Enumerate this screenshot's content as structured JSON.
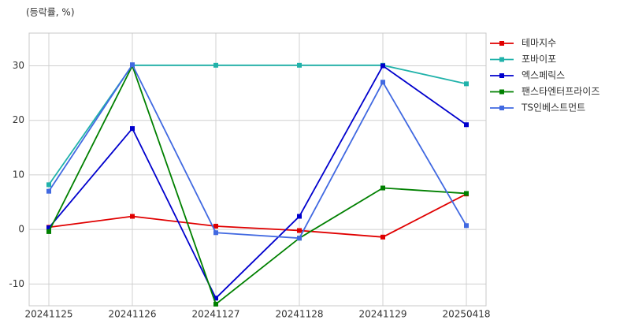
{
  "chart_data": {
    "type": "line",
    "y_label": "(등락률, %)",
    "categories": [
      "20241125",
      "20241126",
      "20241127",
      "20241128",
      "20241129",
      "20250418"
    ],
    "series": [
      {
        "name": "테마지수",
        "color": "#e00000",
        "values": [
          0.4,
          2.4,
          0.6,
          -0.2,
          -1.4,
          6.5
        ]
      },
      {
        "name": "포바이포",
        "color": "#20b2aa",
        "values": [
          8.2,
          30.1,
          30.1,
          30.1,
          30.1,
          26.7
        ]
      },
      {
        "name": "엑스페릭스",
        "color": "#0000cd",
        "values": [
          0.3,
          18.5,
          -12.6,
          2.4,
          30.0,
          19.2
        ]
      },
      {
        "name": "팬스타엔터프라이즈",
        "color": "#008000",
        "values": [
          -0.4,
          30.0,
          -13.7,
          -1.6,
          7.6,
          6.6
        ]
      },
      {
        "name": "TS인베스트먼트",
        "color": "#4169e1",
        "values": [
          7.0,
          30.2,
          -0.6,
          -1.6,
          27.0,
          0.7
        ]
      }
    ],
    "ylim": [
      -14,
      36
    ],
    "yticks": [
      -10,
      0,
      10,
      20,
      30
    ],
    "grid": true,
    "legend": "right"
  }
}
